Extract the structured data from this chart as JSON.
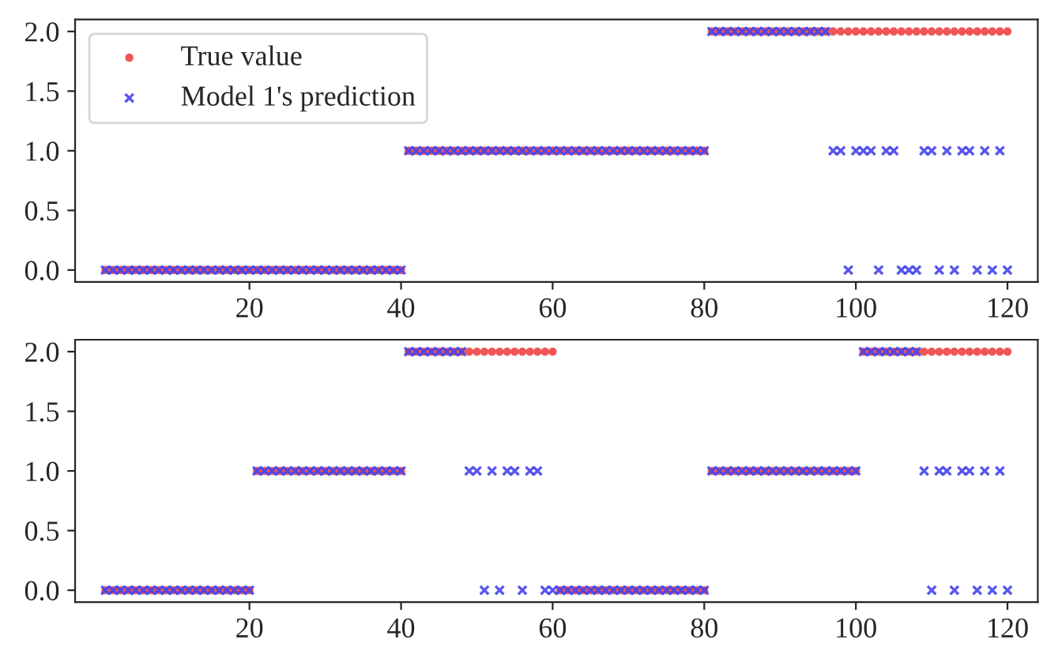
{
  "chart_data": [
    {
      "type": "scatter",
      "x": [
        1,
        2,
        3,
        4,
        5,
        6,
        7,
        8,
        9,
        10,
        11,
        12,
        13,
        14,
        15,
        16,
        17,
        18,
        19,
        20,
        21,
        22,
        23,
        24,
        25,
        26,
        27,
        28,
        29,
        30,
        31,
        32,
        33,
        34,
        35,
        36,
        37,
        38,
        39,
        40,
        41,
        42,
        43,
        44,
        45,
        46,
        47,
        48,
        49,
        50,
        51,
        52,
        53,
        54,
        55,
        56,
        57,
        58,
        59,
        60,
        61,
        62,
        63,
        64,
        65,
        66,
        67,
        68,
        69,
        70,
        71,
        72,
        73,
        74,
        75,
        76,
        77,
        78,
        79,
        80,
        81,
        82,
        83,
        84,
        85,
        86,
        87,
        88,
        89,
        90,
        91,
        92,
        93,
        94,
        95,
        96,
        97,
        98,
        99,
        100,
        101,
        102,
        103,
        104,
        105,
        106,
        107,
        108,
        109,
        110,
        111,
        112,
        113,
        114,
        115,
        116,
        117,
        118,
        119,
        120
      ],
      "xlim": [
        -3,
        124
      ],
      "xticks": [
        20,
        40,
        60,
        80,
        100,
        120
      ],
      "ylim": [
        -0.1,
        2.1
      ],
      "yticks": [
        {
          "value": 0,
          "label": "0.0"
        },
        {
          "value": 0.5,
          "label": "0.5"
        },
        {
          "value": 1,
          "label": "1.0"
        },
        {
          "value": 1.5,
          "label": "1.5"
        },
        {
          "value": 2,
          "label": "2.0"
        }
      ],
      "grid": false,
      "legend": "top left",
      "series": [
        {
          "name": "True value",
          "color": "#ee4444",
          "marker": "circle",
          "values": [
            0,
            0,
            0,
            0,
            0,
            0,
            0,
            0,
            0,
            0,
            0,
            0,
            0,
            0,
            0,
            0,
            0,
            0,
            0,
            0,
            0,
            0,
            0,
            0,
            0,
            0,
            0,
            0,
            0,
            0,
            0,
            0,
            0,
            0,
            0,
            0,
            0,
            0,
            0,
            0,
            1,
            1,
            1,
            1,
            1,
            1,
            1,
            1,
            1,
            1,
            1,
            1,
            1,
            1,
            1,
            1,
            1,
            1,
            1,
            1,
            1,
            1,
            1,
            1,
            1,
            1,
            1,
            1,
            1,
            1,
            1,
            1,
            1,
            1,
            1,
            1,
            1,
            1,
            1,
            1,
            2,
            2,
            2,
            2,
            2,
            2,
            2,
            2,
            2,
            2,
            2,
            2,
            2,
            2,
            2,
            2,
            2,
            2,
            2,
            2,
            2,
            2,
            2,
            2,
            2,
            2,
            2,
            2,
            2,
            2,
            2,
            2,
            2,
            2,
            2,
            2,
            2,
            2,
            2,
            2
          ]
        },
        {
          "name": "Model 1's prediction",
          "color": "#4444ee",
          "marker": "cross",
          "values": [
            0,
            0,
            0,
            0,
            0,
            0,
            0,
            0,
            0,
            0,
            0,
            0,
            0,
            0,
            0,
            0,
            0,
            0,
            0,
            0,
            0,
            0,
            0,
            0,
            0,
            0,
            0,
            0,
            0,
            0,
            0,
            0,
            0,
            0,
            0,
            0,
            0,
            0,
            0,
            0,
            1,
            1,
            1,
            1,
            1,
            1,
            1,
            1,
            1,
            1,
            1,
            1,
            1,
            1,
            1,
            1,
            1,
            1,
            1,
            1,
            1,
            1,
            1,
            1,
            1,
            1,
            1,
            1,
            1,
            1,
            1,
            1,
            1,
            1,
            1,
            1,
            1,
            1,
            1,
            1,
            2,
            2,
            2,
            2,
            2,
            2,
            2,
            2,
            2,
            2,
            2,
            2,
            2,
            2,
            2,
            2,
            1,
            1,
            0,
            1,
            1,
            1,
            0,
            1,
            1,
            0,
            0,
            0,
            1,
            1,
            0,
            1,
            0,
            1,
            1,
            0,
            1,
            0,
            1,
            0
          ]
        }
      ]
    },
    {
      "type": "scatter",
      "x": [
        1,
        2,
        3,
        4,
        5,
        6,
        7,
        8,
        9,
        10,
        11,
        12,
        13,
        14,
        15,
        16,
        17,
        18,
        19,
        20,
        21,
        22,
        23,
        24,
        25,
        26,
        27,
        28,
        29,
        30,
        31,
        32,
        33,
        34,
        35,
        36,
        37,
        38,
        39,
        40,
        41,
        42,
        43,
        44,
        45,
        46,
        47,
        48,
        49,
        50,
        51,
        52,
        53,
        54,
        55,
        56,
        57,
        58,
        59,
        60,
        61,
        62,
        63,
        64,
        65,
        66,
        67,
        68,
        69,
        70,
        71,
        72,
        73,
        74,
        75,
        76,
        77,
        78,
        79,
        80,
        81,
        82,
        83,
        84,
        85,
        86,
        87,
        88,
        89,
        90,
        91,
        92,
        93,
        94,
        95,
        96,
        97,
        98,
        99,
        100,
        101,
        102,
        103,
        104,
        105,
        106,
        107,
        108,
        109,
        110,
        111,
        112,
        113,
        114,
        115,
        116,
        117,
        118,
        119,
        120
      ],
      "xlim": [
        -3,
        124
      ],
      "xticks": [
        20,
        40,
        60,
        80,
        100,
        120
      ],
      "ylim": [
        -0.1,
        2.1
      ],
      "yticks": [
        {
          "value": 0,
          "label": "0.0"
        },
        {
          "value": 0.5,
          "label": "0.5"
        },
        {
          "value": 1,
          "label": "1.0"
        },
        {
          "value": 1.5,
          "label": "1.5"
        },
        {
          "value": 2,
          "label": "2.0"
        }
      ],
      "grid": false,
      "series": [
        {
          "color": "#ee4444",
          "marker": "circle",
          "values": [
            0,
            0,
            0,
            0,
            0,
            0,
            0,
            0,
            0,
            0,
            0,
            0,
            0,
            0,
            0,
            0,
            0,
            0,
            0,
            0,
            1,
            1,
            1,
            1,
            1,
            1,
            1,
            1,
            1,
            1,
            1,
            1,
            1,
            1,
            1,
            1,
            1,
            1,
            1,
            1,
            2,
            2,
            2,
            2,
            2,
            2,
            2,
            2,
            2,
            2,
            2,
            2,
            2,
            2,
            2,
            2,
            2,
            2,
            2,
            2,
            0,
            0,
            0,
            0,
            0,
            0,
            0,
            0,
            0,
            0,
            0,
            0,
            0,
            0,
            0,
            0,
            0,
            0,
            0,
            0,
            1,
            1,
            1,
            1,
            1,
            1,
            1,
            1,
            1,
            1,
            1,
            1,
            1,
            1,
            1,
            1,
            1,
            1,
            1,
            1,
            2,
            2,
            2,
            2,
            2,
            2,
            2,
            2,
            2,
            2,
            2,
            2,
            2,
            2,
            2,
            2,
            2,
            2,
            2,
            2
          ]
        },
        {
          "color": "#4444ee",
          "marker": "cross",
          "values": [
            0,
            0,
            0,
            0,
            0,
            0,
            0,
            0,
            0,
            0,
            0,
            0,
            0,
            0,
            0,
            0,
            0,
            0,
            0,
            0,
            1,
            1,
            1,
            1,
            1,
            1,
            1,
            1,
            1,
            1,
            1,
            1,
            1,
            1,
            1,
            1,
            1,
            1,
            1,
            1,
            2,
            2,
            2,
            2,
            2,
            2,
            2,
            2,
            1,
            1,
            0,
            1,
            0,
            1,
            1,
            0,
            1,
            1,
            0,
            0,
            0,
            0,
            0,
            0,
            0,
            0,
            0,
            0,
            0,
            0,
            0,
            0,
            0,
            0,
            0,
            0,
            0,
            0,
            0,
            0,
            1,
            1,
            1,
            1,
            1,
            1,
            1,
            1,
            1,
            1,
            1,
            1,
            1,
            1,
            1,
            1,
            1,
            1,
            1,
            1,
            2,
            2,
            2,
            2,
            2,
            2,
            2,
            2,
            1,
            0,
            1,
            1,
            0,
            1,
            1,
            0,
            1,
            0,
            1,
            0
          ]
        }
      ]
    }
  ]
}
